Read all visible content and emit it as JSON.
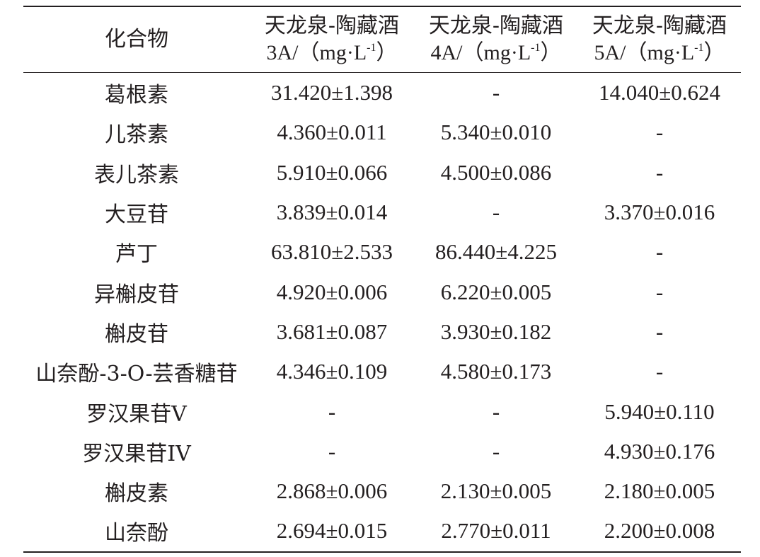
{
  "table": {
    "header": {
      "compound": "化合物",
      "columns": [
        {
          "name": "天龙泉-陶藏酒",
          "sample": "3A/（mg·L",
          "exp": "-1",
          "close": "）"
        },
        {
          "name": "天龙泉-陶藏酒",
          "sample": "4A/（mg·L",
          "exp": "-1",
          "close": "）"
        },
        {
          "name": "天龙泉-陶藏酒",
          "sample": "5A/（mg·L",
          "exp": "-1",
          "close": "）"
        }
      ]
    },
    "rows": [
      {
        "compound": "葛根素",
        "v3A": "31.420±1.398",
        "v4A": "-",
        "v5A": "14.040±0.624"
      },
      {
        "compound": "儿茶素",
        "v3A": "4.360±0.011",
        "v4A": "5.340±0.010",
        "v5A": "-"
      },
      {
        "compound": "表儿茶素",
        "v3A": "5.910±0.066",
        "v4A": "4.500±0.086",
        "v5A": "-"
      },
      {
        "compound": "大豆苷",
        "v3A": "3.839±0.014",
        "v4A": "-",
        "v5A": "3.370±0.016"
      },
      {
        "compound": "芦丁",
        "v3A": "63.810±2.533",
        "v4A": "86.440±4.225",
        "v5A": "-"
      },
      {
        "compound": "异槲皮苷",
        "v3A": "4.920±0.006",
        "v4A": "6.220±0.005",
        "v5A": "-"
      },
      {
        "compound": "槲皮苷",
        "v3A": "3.681±0.087",
        "v4A": "3.930±0.182",
        "v5A": "-"
      },
      {
        "compound": "山奈酚-3-O-芸香糖苷",
        "v3A": "4.346±0.109",
        "v4A": "4.580±0.173",
        "v5A": "-"
      },
      {
        "compound": "罗汉果苷V",
        "v3A": "-",
        "v4A": "-",
        "v5A": "5.940±0.110"
      },
      {
        "compound": "罗汉果苷IV",
        "v3A": "-",
        "v4A": "-",
        "v5A": "4.930±0.176"
      },
      {
        "compound": "槲皮素",
        "v3A": "2.868±0.006",
        "v4A": "2.130±0.005",
        "v5A": "2.180±0.005"
      },
      {
        "compound": "山奈酚",
        "v3A": "2.694±0.015",
        "v4A": "2.770±0.011",
        "v5A": "2.200±0.008"
      }
    ]
  }
}
